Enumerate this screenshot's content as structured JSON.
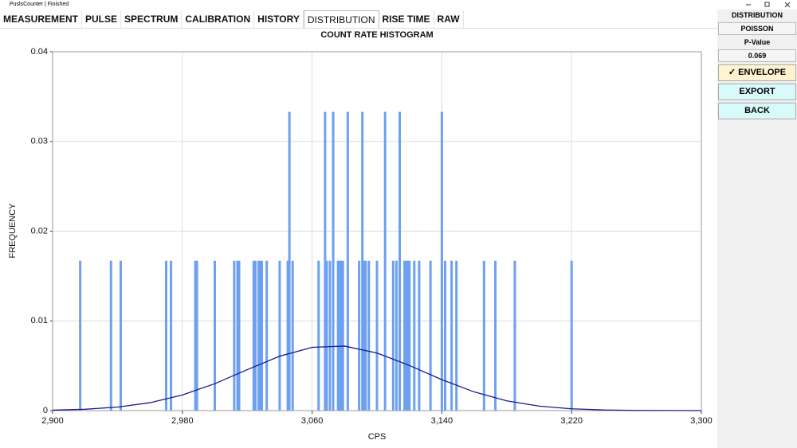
{
  "window": {
    "title": "PuslsCounter | Finished"
  },
  "tabs": [
    "MEASUREMENT",
    "PULSE",
    "SPECTRUM",
    "CALIBRATION",
    "HISTORY",
    "DISTRIBUTION",
    "RISE TIME",
    "RAW"
  ],
  "panel": {
    "distribution_label": "DISTRIBUTION",
    "distribution": "POISSON",
    "pvalue_label": "P-Value",
    "pvalue": "0.069",
    "envelope_button": "✓ ENVELOPE",
    "export_button": "EXPORT",
    "back_button": "BACK"
  },
  "chart_data": {
    "type": "bar",
    "title": "COUNT RATE HISTOGRAM",
    "x_label": "CPS",
    "y_label": "FREQUENCY",
    "color": "#6ea0f0",
    "grid": true,
    "x": [
      2917,
      2936,
      2942,
      2970,
      2973,
      2988,
      2989,
      3000,
      3012,
      3014,
      3015,
      3024,
      3025,
      3027,
      3028,
      3029,
      3032,
      3040,
      3045,
      3046,
      3048,
      3064,
      3068,
      3069,
      3071,
      3073,
      3076,
      3077,
      3078,
      3079,
      3082,
      3089,
      3091,
      3092,
      3093,
      3095,
      3100,
      3105,
      3110,
      3112,
      3114,
      3117,
      3118,
      3119,
      3120,
      3123,
      3126,
      3133,
      3140,
      3142,
      3146,
      3149,
      3166,
      3173,
      3185,
      3220
    ],
    "values": [
      0.0167,
      0.0167,
      0.0167,
      0.0167,
      0.0167,
      0.0167,
      0.0167,
      0.0167,
      0.0167,
      0.0167,
      0.0167,
      0.0167,
      0.0167,
      0.0167,
      0.0167,
      0.0167,
      0.0167,
      0.0167,
      0.0167,
      0.0333,
      0.0167,
      0.0167,
      0.0333,
      0.0167,
      0.0167,
      0.0333,
      0.0167,
      0.0167,
      0.0167,
      0.0167,
      0.0333,
      0.0167,
      0.0333,
      0.0167,
      0.0167,
      0.0167,
      0.0167,
      0.0333,
      0.0167,
      0.0167,
      0.0333,
      0.0167,
      0.0167,
      0.0167,
      0.0167,
      0.0167,
      0.0167,
      0.0167,
      0.0333,
      0.0167,
      0.0167,
      0.0167,
      0.0167,
      0.0167,
      0.0167,
      0.0167
    ],
    "envelope": {
      "color": "#1a1a8c",
      "x": [
        2900,
        2920,
        2940,
        2960,
        2980,
        3000,
        3020,
        3040,
        3060,
        3080,
        3100,
        3120,
        3140,
        3160,
        3180,
        3200,
        3220,
        3240,
        3260,
        3280,
        3300
      ],
      "values": [
        5e-05,
        0.00015,
        0.00039,
        0.00088,
        0.00174,
        0.003,
        0.00456,
        0.00606,
        0.00705,
        0.00719,
        0.00642,
        0.00503,
        0.00345,
        0.00208,
        0.00109,
        0.0005,
        0.0002,
        7e-05,
        2e-05,
        1e-05,
        0
      ]
    },
    "xlim": [
      2900,
      3300
    ],
    "ylim": [
      0,
      0.04
    ],
    "xticks": [
      {
        "value": 2900,
        "label": "2,900"
      },
      {
        "value": 2980,
        "label": "2,980"
      },
      {
        "value": 3060,
        "label": "3,060"
      },
      {
        "value": 3140,
        "label": "3,140"
      },
      {
        "value": 3220,
        "label": "3,220"
      },
      {
        "value": 3300,
        "label": "3,300"
      }
    ],
    "yticks": [
      0,
      0.01,
      0.02,
      0.03,
      0.04
    ]
  }
}
